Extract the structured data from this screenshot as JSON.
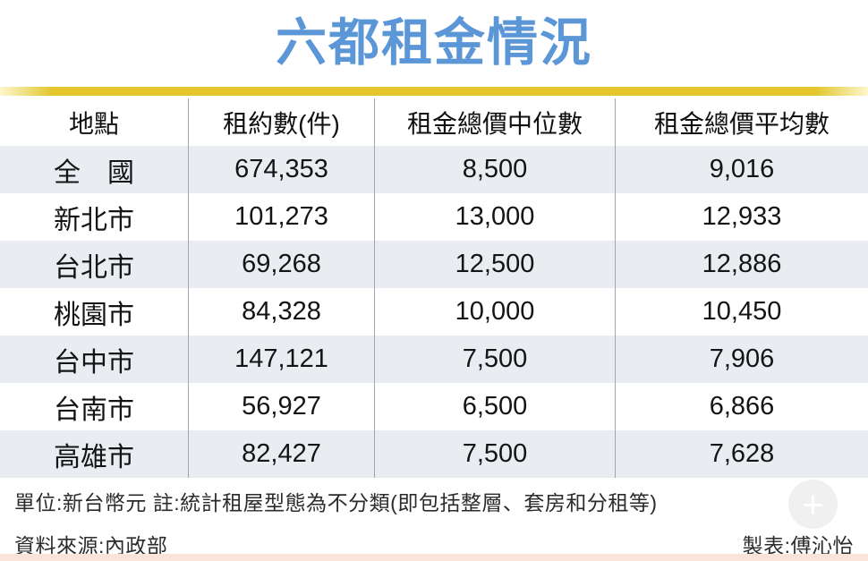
{
  "title": "六都租金情況",
  "table": {
    "columns": [
      "地點",
      "租約數(件)",
      "租金總價中位數",
      "租金總價平均數"
    ],
    "rows": [
      [
        "全　國",
        "674,353",
        "8,500",
        "9,016"
      ],
      [
        "新北市",
        "101,273",
        "13,000",
        "12,933"
      ],
      [
        "台北市",
        "69,268",
        "12,500",
        "12,886"
      ],
      [
        "桃園市",
        "84,328",
        "10,000",
        "10,450"
      ],
      [
        "台中市",
        "147,121",
        "7,500",
        "7,906"
      ],
      [
        "台南市",
        "56,927",
        "6,500",
        "6,866"
      ],
      [
        "高雄市",
        "82,427",
        "7,500",
        "7,628"
      ]
    ]
  },
  "footer": {
    "note": "單位:新台幣元 註:統計租屋型態為不分類(即包括整層、套房和分租等)",
    "source": "資料來源:內政部",
    "credit": "製表:傅沁怡"
  },
  "icons": {
    "plus": "+"
  },
  "colors": {
    "title_blue": "#5b96d6",
    "bar_yellow": "#e3c62c",
    "row_shade": "#e9edf2",
    "divider_gray": "#a3a7ad",
    "bottom_strip_pink": "#fae3da"
  },
  "chart_data": {
    "type": "table",
    "title": "六都租金情況",
    "columns": [
      "地點",
      "租約數(件)",
      "租金總價中位數",
      "租金總價平均數"
    ],
    "rows": [
      [
        "全國",
        674353,
        8500,
        9016
      ],
      [
        "新北市",
        101273,
        13000,
        12933
      ],
      [
        "台北市",
        69268,
        12500,
        12886
      ],
      [
        "桃園市",
        84328,
        10000,
        10450
      ],
      [
        "台中市",
        147121,
        7500,
        7906
      ],
      [
        "台南市",
        56927,
        6500,
        6866
      ],
      [
        "高雄市",
        82427,
        7500,
        7628
      ]
    ],
    "unit": "新台幣元",
    "note": "統計租屋型態為不分類(即包括整層、套房和分租等)",
    "source": "內政部",
    "credit": "傅沁怡"
  }
}
